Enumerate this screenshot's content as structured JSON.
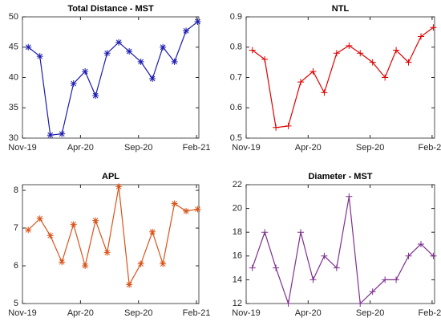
{
  "chart_data": [
    {
      "type": "line",
      "title": "Total Distance - MST",
      "marker": "*",
      "x": [
        0.5,
        1.5,
        2.4,
        3.4,
        4.4,
        5.4,
        6.3,
        7.3,
        8.3,
        9.2,
        10.2,
        11.2,
        12.1,
        13.1,
        14.1,
        15.1
      ],
      "series": [
        {
          "color": "#1c1cb0",
          "values": [
            45,
            43.5,
            30.5,
            30.7,
            39,
            41,
            37,
            44,
            45.8,
            44.3,
            42.6,
            39.8,
            45,
            42.6,
            47.7,
            49.2
          ]
        }
      ],
      "xlim": [
        0,
        15.2
      ],
      "xticks": [
        {
          "value": 0,
          "label": "Nov-19"
        },
        {
          "value": 5,
          "label": "Apr-20"
        },
        {
          "value": 10,
          "label": "Sep-20"
        },
        {
          "value": 15,
          "label": "Feb-21"
        }
      ],
      "ylim": [
        30,
        50
      ],
      "yticks": [
        30,
        35,
        40,
        45,
        50
      ]
    },
    {
      "type": "line",
      "title": "NTL",
      "marker": "+",
      "x": [
        0.5,
        1.5,
        2.4,
        3.4,
        4.4,
        5.4,
        6.3,
        7.3,
        8.3,
        9.2,
        10.2,
        11.2,
        12.1,
        13.1,
        14.1,
        15.1
      ],
      "series": [
        {
          "color": "#e00000",
          "values": [
            0.79,
            0.76,
            0.535,
            0.54,
            0.685,
            0.72,
            0.65,
            0.78,
            0.805,
            0.78,
            0.75,
            0.7,
            0.79,
            0.75,
            0.835,
            0.865
          ]
        }
      ],
      "xlim": [
        0,
        15.2
      ],
      "xticks": [
        {
          "value": 0,
          "label": "Nov-19"
        },
        {
          "value": 5,
          "label": "Apr-20"
        },
        {
          "value": 10,
          "label": "Sep-20"
        },
        {
          "value": 15,
          "label": "Feb-21"
        }
      ],
      "ylim": [
        0.5,
        0.9
      ],
      "yticks": [
        0.5,
        0.6,
        0.7,
        0.8,
        0.9
      ]
    },
    {
      "type": "line",
      "title": "APL",
      "marker": "*",
      "x": [
        0.5,
        1.5,
        2.4,
        3.4,
        4.4,
        5.4,
        6.3,
        7.3,
        8.3,
        9.2,
        10.2,
        11.2,
        12.1,
        13.1,
        14.1,
        15.1
      ],
      "series": [
        {
          "color": "#d95319",
          "values": [
            6.95,
            7.25,
            6.8,
            6.1,
            7.1,
            6,
            7.2,
            6.35,
            8.1,
            5.5,
            6.05,
            6.9,
            6.05,
            7.65,
            7.45,
            7.5
          ]
        }
      ],
      "xlim": [
        0,
        15.2
      ],
      "xticks": [
        {
          "value": 0,
          "label": "Nov-19"
        },
        {
          "value": 5,
          "label": "Apr-20"
        },
        {
          "value": 10,
          "label": "Sep-20"
        },
        {
          "value": 15,
          "label": "Feb-21"
        }
      ],
      "ylim": [
        5,
        8.15
      ],
      "yticks": [
        5,
        6,
        7,
        8
      ]
    },
    {
      "type": "line",
      "title": "Diameter - MST",
      "marker": "+",
      "x": [
        0.5,
        1.5,
        2.4,
        3.4,
        4.4,
        5.4,
        6.3,
        7.3,
        8.3,
        9.2,
        10.2,
        11.2,
        12.1,
        13.1,
        14.1,
        15.1
      ],
      "series": [
        {
          "color": "#7e2f8e",
          "values": [
            15,
            18,
            15,
            12,
            18,
            14,
            16,
            15,
            21,
            12,
            13,
            14,
            14,
            16,
            17,
            16
          ]
        }
      ],
      "xlim": [
        0,
        15.2
      ],
      "xticks": [
        {
          "value": 0,
          "label": "Nov-19"
        },
        {
          "value": 5,
          "label": "Apr-20"
        },
        {
          "value": 10,
          "label": "Sep-20"
        },
        {
          "value": 15,
          "label": "Feb-21"
        }
      ],
      "ylim": [
        12,
        22
      ],
      "yticks": [
        12,
        14,
        16,
        18,
        20,
        22
      ]
    }
  ]
}
